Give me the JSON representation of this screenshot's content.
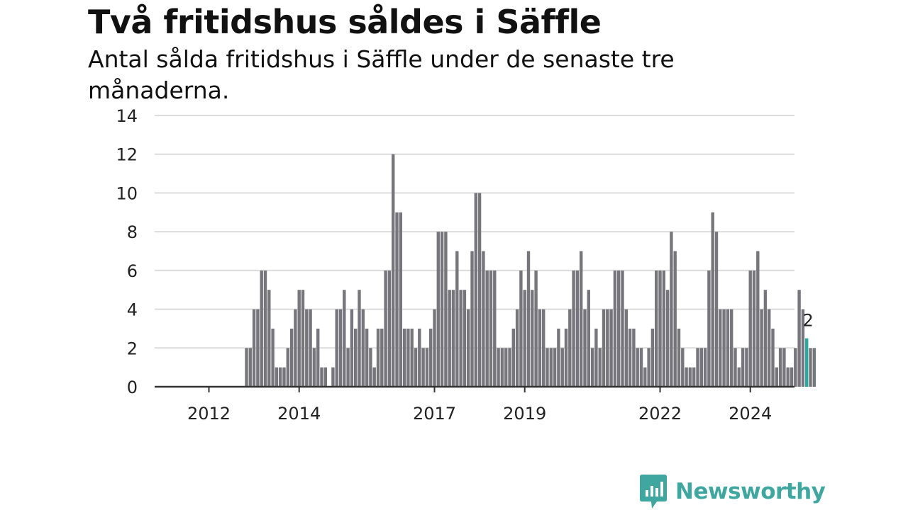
{
  "title": "Två fritidshus såldes i Säffle",
  "subtitle": "Antal sålda fritidshus i Säffle under de senaste tre månaderna.",
  "brand": {
    "name": "Newsworthy",
    "color": "#3fa79f"
  },
  "colors": {
    "bar": "#77767c",
    "highlight": "#2ba8a2",
    "grid": "#dcdcdc",
    "axis": "#333333"
  },
  "chart_data": {
    "type": "bar",
    "title": "Två fritidshus såldes i Säffle",
    "subtitle": "Antal sålda fritidshus i Säffle under de senaste tre månaderna.",
    "xlabel": "",
    "ylabel": "",
    "ylim": [
      0,
      14
    ],
    "yticks": [
      0,
      2,
      4,
      6,
      8,
      10,
      12,
      14
    ],
    "xticks": [
      "2012",
      "2014",
      "2017",
      "2019",
      "2022",
      "2024"
    ],
    "grid": true,
    "start": "2011-01",
    "frequency": "monthly",
    "values": [
      0,
      0,
      0,
      0,
      0,
      0,
      0,
      0,
      0,
      0,
      0,
      0,
      0,
      0,
      0,
      0,
      0,
      0,
      0,
      0,
      0,
      0,
      2,
      2,
      4,
      4,
      6,
      6,
      5,
      3,
      1,
      1,
      1,
      2,
      3,
      4,
      5,
      5,
      4,
      4,
      2,
      3,
      1,
      1,
      0,
      1,
      4,
      4,
      5,
      2,
      4,
      3,
      5,
      4,
      3,
      2,
      1,
      3,
      3,
      6,
      6,
      12,
      9,
      9,
      3,
      3,
      3,
      2,
      3,
      2,
      2,
      3,
      4,
      8,
      8,
      8,
      5,
      5,
      7,
      5,
      5,
      4,
      7,
      10,
      10,
      7,
      6,
      6,
      6,
      2,
      2,
      2,
      2,
      3,
      4,
      6,
      5,
      7,
      5,
      6,
      4,
      4,
      2,
      2,
      2,
      3,
      2,
      3,
      4,
      6,
      6,
      7,
      4,
      5,
      2,
      3,
      2,
      4,
      4,
      4,
      6,
      6,
      6,
      4,
      3,
      3,
      2,
      2,
      1,
      2,
      3,
      6,
      6,
      6,
      5,
      8,
      7,
      3,
      2,
      1,
      1,
      1,
      2,
      2,
      2,
      6,
      9,
      8,
      4,
      4,
      4,
      4,
      2,
      1,
      2,
      2,
      6,
      6,
      7,
      4,
      5,
      4,
      3,
      1,
      2,
      2,
      1,
      1,
      2,
      5,
      4,
      2.5,
      2,
      2
    ],
    "highlight_index": 171,
    "highlight_label": "2"
  }
}
